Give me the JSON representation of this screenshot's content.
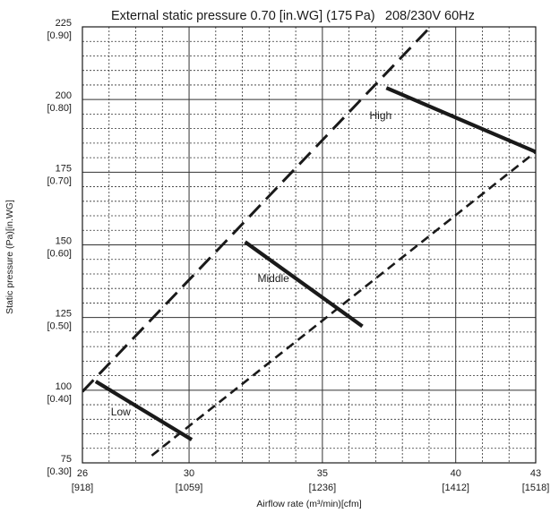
{
  "chart_data": {
    "type": "line",
    "title": "External static pressure 0.70 [in.WG] (175 Pa)  208/230V 60Hz",
    "xlabel": "Airflow rate (m³/min)[cfm]",
    "ylabel": "Static pressure (Pa)[in.WG]",
    "xlim": [
      26,
      43
    ],
    "ylim": [
      75,
      225
    ],
    "grid": true,
    "x_ticks": [
      {
        "value": 26,
        "label": "26",
        "sublabel": "[918]"
      },
      {
        "value": 30,
        "label": "30",
        "sublabel": "[1059]"
      },
      {
        "value": 35,
        "label": "35",
        "sublabel": "[1236]"
      },
      {
        "value": 40,
        "label": "40",
        "sublabel": "[1412]"
      },
      {
        "value": 43,
        "label": "43",
        "sublabel": "[1518]"
      }
    ],
    "y_ticks": [
      {
        "value": 75,
        "label": "75",
        "sublabel": "[0.30]"
      },
      {
        "value": 100,
        "label": "100",
        "sublabel": "[0.40]"
      },
      {
        "value": 125,
        "label": "125",
        "sublabel": "[0.50]"
      },
      {
        "value": 150,
        "label": "150",
        "sublabel": "[0.60]"
      },
      {
        "value": 175,
        "label": "175",
        "sublabel": "[0.70]"
      },
      {
        "value": 200,
        "label": "200",
        "sublabel": "[0.80]"
      },
      {
        "value": 225,
        "label": "225",
        "sublabel": "[0.90]"
      }
    ],
    "series": [
      {
        "name": "High",
        "style": "solid",
        "x": [
          37.4,
          43.0
        ],
        "y": [
          204,
          182
        ]
      },
      {
        "name": "Middle",
        "style": "solid",
        "x": [
          32.1,
          36.5
        ],
        "y": [
          151,
          122
        ]
      },
      {
        "name": "Low",
        "style": "solid",
        "x": [
          26.5,
          30.1
        ],
        "y": [
          103,
          83
        ]
      },
      {
        "style": "long-dash",
        "x": [
          26.0,
          39.0
        ],
        "y": [
          99.5,
          224.5
        ]
      },
      {
        "style": "short-dash",
        "x": [
          28.6,
          43.0
        ],
        "y": [
          77.5,
          182
        ]
      }
    ],
    "colors": {
      "line": "#1a1a1a",
      "grid": "#333333"
    }
  }
}
